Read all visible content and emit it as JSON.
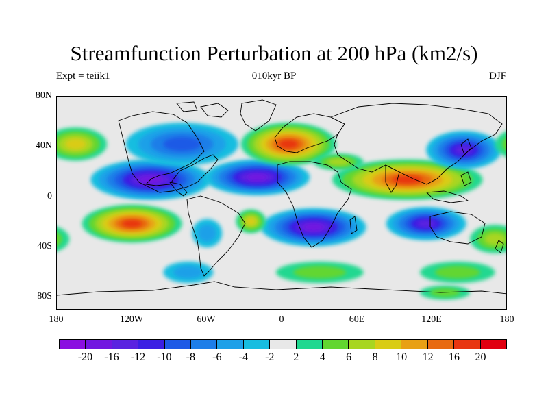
{
  "title": "Streamfunction Perturbation at 200 hPa (km2/s)",
  "left_subtitle": "Expt = teiik1",
  "center_subtitle": "010kyr BP",
  "right_subtitle": "DJF",
  "lat_ticks": [
    "80N",
    "40N",
    "0",
    "40S",
    "80S"
  ],
  "lon_ticks": [
    "180",
    "120W",
    "60W",
    "0",
    "60E",
    "120E",
    "180"
  ],
  "colorbar": {
    "colors": [
      "#8a0fe0",
      "#7216e0",
      "#5a22e0",
      "#3b1fe3",
      "#1e5ae6",
      "#1e7ee8",
      "#1ea0e8",
      "#18bde0",
      "#e8e8e8",
      "#20d890",
      "#62d630",
      "#a8d620",
      "#d9cc15",
      "#e8a015",
      "#e86a10",
      "#e83510",
      "#e00010"
    ],
    "labels": [
      "-20",
      "-16",
      "-12",
      "-10",
      "-8",
      "-6",
      "-4",
      "-2",
      "2",
      "4",
      "6",
      "8",
      "10",
      "12",
      "16",
      "20"
    ]
  },
  "field_blobs": [
    {
      "lon": -105,
      "lat": 20,
      "rx": 48,
      "ry": 17,
      "value": -18
    },
    {
      "lon": -20,
      "lat": 22,
      "rx": 42,
      "ry": 15,
      "value": -18
    },
    {
      "lon": -120,
      "lat": -17,
      "rx": 40,
      "ry": 16,
      "value": 19
    },
    {
      "lon": 100,
      "lat": 20,
      "rx": 60,
      "ry": 17,
      "value": 19
    },
    {
      "lon": 5,
      "lat": 50,
      "rx": 38,
      "ry": 18,
      "value": 16
    },
    {
      "lon": 25,
      "lat": -20,
      "rx": 42,
      "ry": 16,
      "value": -16
    },
    {
      "lon": 115,
      "lat": -17,
      "rx": 32,
      "ry": 14,
      "value": -12
    },
    {
      "lon": 145,
      "lat": 45,
      "rx": 30,
      "ry": 16,
      "value": -14
    },
    {
      "lon": -80,
      "lat": 50,
      "rx": 45,
      "ry": 18,
      "value": -8
    },
    {
      "lon": -165,
      "lat": 50,
      "rx": 25,
      "ry": 14,
      "value": 8
    },
    {
      "lon": -60,
      "lat": -25,
      "rx": 12,
      "ry": 12,
      "value": -4
    },
    {
      "lon": -25,
      "lat": -15,
      "rx": 12,
      "ry": 10,
      "value": 8
    },
    {
      "lon": 45,
      "lat": 35,
      "rx": 20,
      "ry": 7,
      "value": 6
    },
    {
      "lon": 30,
      "lat": -58,
      "rx": 35,
      "ry": 9,
      "value": 4
    },
    {
      "lon": 140,
      "lat": -58,
      "rx": 30,
      "ry": 9,
      "value": 4
    },
    {
      "lon": -75,
      "lat": -58,
      "rx": 20,
      "ry": 9,
      "value": -4
    },
    {
      "lon": 170,
      "lat": -30,
      "rx": 20,
      "ry": 12,
      "value": 6
    },
    {
      "lon": 130,
      "lat": -75,
      "rx": 20,
      "ry": 6,
      "value": 4
    }
  ]
}
